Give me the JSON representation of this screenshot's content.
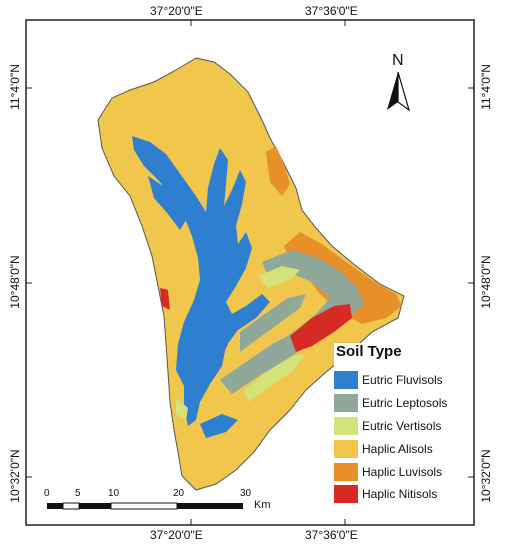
{
  "map": {
    "coords": {
      "top": [
        "37°20'0\"E",
        "37°36'0\"E"
      ],
      "bottom": [
        "37°20'0\"E",
        "37°36'0\"E"
      ],
      "left": [
        "11°4'0\"N",
        "10°48'0\"N",
        "10°32'0\"N"
      ],
      "right": [
        "11°4'0\"N",
        "10°48'0\"N",
        "10°32'0\"N"
      ]
    },
    "north_label": "N",
    "scale": {
      "ticks": [
        "0",
        "5",
        "10",
        "20",
        "30"
      ],
      "unit": "Km"
    },
    "legend": {
      "title": "Soil Type",
      "items": [
        {
          "label": "Eutric Fluvisols",
          "color": "#2f7fd0"
        },
        {
          "label": "Eutric Leptosols",
          "color": "#8fa89a"
        },
        {
          "label": "Eutric Vertisols",
          "color": "#d4e27a"
        },
        {
          "label": "Haplic Alisols",
          "color": "#f0c64c"
        },
        {
          "label": "Haplic Luvisols",
          "color": "#e8902a"
        },
        {
          "label": "Haplic Nitisols",
          "color": "#d62a24"
        }
      ]
    }
  }
}
